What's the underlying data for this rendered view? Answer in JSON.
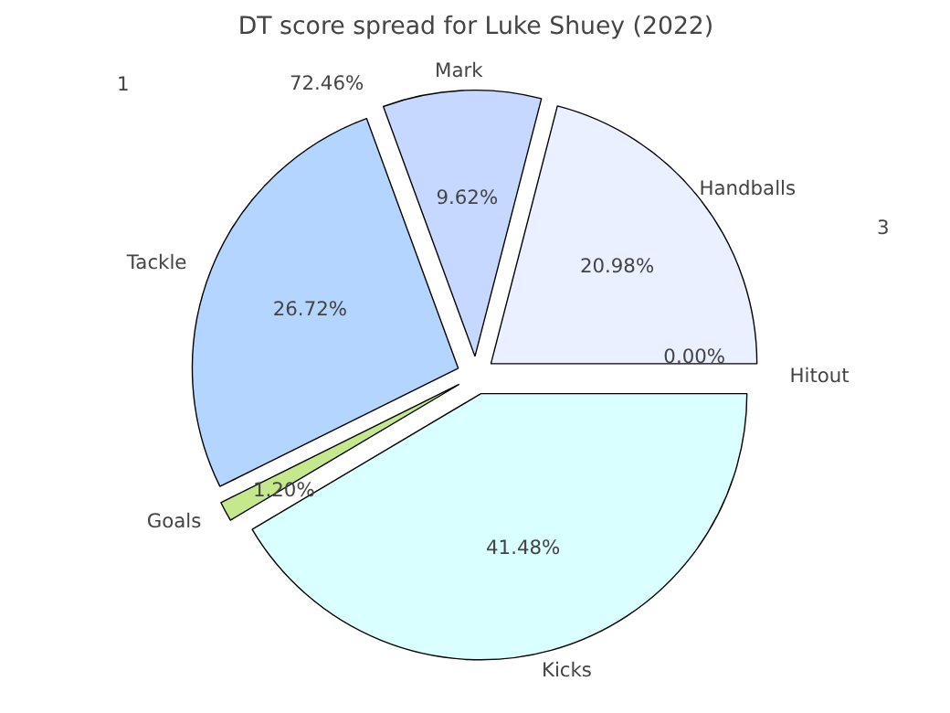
{
  "chart_data": {
    "type": "pie",
    "title": "DT score spread for Luke Shuey (2022)",
    "categories": [
      "Handballs",
      "Mark",
      "Tackle",
      "Goals",
      "Kicks",
      "Hitout"
    ],
    "values": [
      20.98,
      9.62,
      26.72,
      1.2,
      41.48,
      0.0
    ],
    "value_labels": [
      "20.98%",
      "9.62%",
      "26.72%",
      "1.20%",
      "41.48%",
      "0.00%"
    ],
    "colors": [
      "#eaf0ff",
      "#c6d8ff",
      "#b3d5ff",
      "#c5e88c",
      "#d9ffff",
      "#ffffff"
    ],
    "annotations": [
      "1",
      "3",
      "72.46%"
    ],
    "legend": false
  }
}
